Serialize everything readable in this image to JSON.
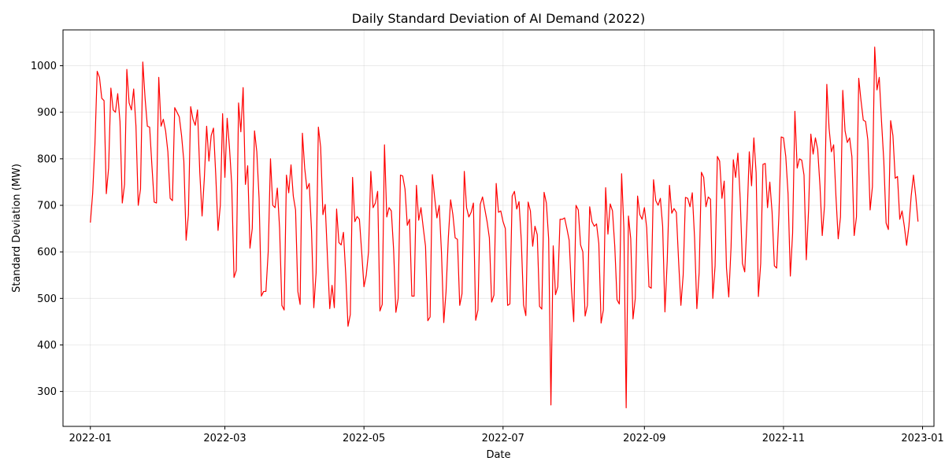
{
  "chart_data": {
    "type": "line",
    "title": "Daily Standard Deviation of AI Demand (2022)",
    "xlabel": "Date",
    "ylabel": "Standard Deviation (MW)",
    "xlim": [
      "2021-12-20",
      "2023-01-06"
    ],
    "ylim": [
      225,
      1077
    ],
    "grid": true,
    "line_color": "#ff0000",
    "x_ticks": [
      {
        "date": "2022-01-01",
        "label": "2022-01"
      },
      {
        "date": "2022-03-01",
        "label": "2022-03"
      },
      {
        "date": "2022-05-01",
        "label": "2022-05"
      },
      {
        "date": "2022-07-01",
        "label": "2022-07"
      },
      {
        "date": "2022-09-01",
        "label": "2022-09"
      },
      {
        "date": "2022-11-01",
        "label": "2022-11"
      },
      {
        "date": "2023-01-01",
        "label": "2023-01"
      }
    ],
    "y_ticks": [
      300,
      400,
      500,
      600,
      700,
      800,
      900,
      1000
    ],
    "series": [
      {
        "x_start": "2022-01-01",
        "x_end": "2022-12-31",
        "frequency": "daily",
        "values": [
          663,
          725,
          830,
          988,
          975,
          930,
          925,
          725,
          780,
          952,
          905,
          900,
          940,
          880,
          705,
          745,
          992,
          920,
          905,
          950,
          870,
          700,
          735,
          1008,
          930,
          870,
          868,
          785,
          707,
          705,
          975,
          870,
          885,
          860,
          815,
          715,
          710,
          910,
          900,
          890,
          850,
          795,
          625,
          680,
          912,
          885,
          872,
          905,
          770,
          677,
          760,
          870,
          795,
          850,
          866,
          765,
          646,
          700,
          897,
          760,
          887,
          825,
          745,
          545,
          560,
          920,
          858,
          953,
          745,
          785,
          608,
          650,
          860,
          815,
          715,
          505,
          515,
          515,
          600,
          800,
          700,
          695,
          737,
          650,
          485,
          475,
          765,
          727,
          787,
          720,
          690,
          515,
          487,
          855,
          780,
          735,
          747,
          645,
          480,
          555,
          868,
          825,
          680,
          702,
          587,
          478,
          528,
          480,
          692,
          620,
          615,
          642,
          552,
          440,
          465,
          760,
          665,
          676,
          670,
          600,
          525,
          550,
          600,
          773,
          695,
          705,
          730,
          473,
          487,
          830,
          675,
          695,
          688,
          605,
          470,
          500,
          765,
          763,
          735,
          657,
          670,
          505,
          505,
          743,
          668,
          695,
          652,
          612,
          452,
          460,
          766,
          717,
          673,
          700,
          598,
          448,
          515,
          630,
          712,
          680,
          630,
          627,
          485,
          510,
          773,
          695,
          675,
          685,
          705,
          453,
          475,
          702,
          718,
          692,
          665,
          630,
          492,
          507,
          747,
          685,
          688,
          665,
          650,
          485,
          488,
          720,
          730,
          692,
          708,
          625,
          486,
          463,
          707,
          688,
          612,
          655,
          637,
          483,
          477,
          728,
          705,
          628,
          271,
          613,
          508,
          525,
          670,
          670,
          673,
          650,
          625,
          520,
          450,
          700,
          690,
          615,
          600,
          462,
          485,
          697,
          665,
          655,
          660,
          618,
          447,
          475,
          738,
          638,
          703,
          688,
          612,
          497,
          488,
          768,
          650,
          265,
          677,
          628,
          456,
          500,
          720,
          680,
          670,
          695,
          652,
          525,
          522,
          755,
          710,
          700,
          715,
          655,
          471,
          580,
          743,
          683,
          693,
          685,
          580,
          485,
          550,
          717,
          715,
          697,
          727,
          630,
          478,
          555,
          771,
          760,
          697,
          718,
          713,
          500,
          570,
          805,
          795,
          715,
          752,
          565,
          503,
          610,
          798,
          760,
          812,
          715,
          575,
          557,
          670,
          815,
          742,
          845,
          770,
          504,
          575,
          788,
          790,
          695,
          750,
          685,
          570,
          565,
          680,
          847,
          845,
          805,
          725,
          548,
          640,
          902,
          780,
          800,
          797,
          765,
          583,
          690,
          853,
          810,
          845,
          820,
          742,
          635,
          700,
          960,
          865,
          815,
          830,
          720,
          628,
          675,
          947,
          860,
          835,
          845,
          805,
          635,
          675,
          973,
          925,
          883,
          880,
          840,
          690,
          740,
          1040,
          948,
          975,
          880,
          795,
          662,
          648,
          882,
          850,
          758,
          762,
          670,
          688,
          655,
          614,
          655,
          720,
          765,
          720,
          665
        ]
      }
    ]
  }
}
